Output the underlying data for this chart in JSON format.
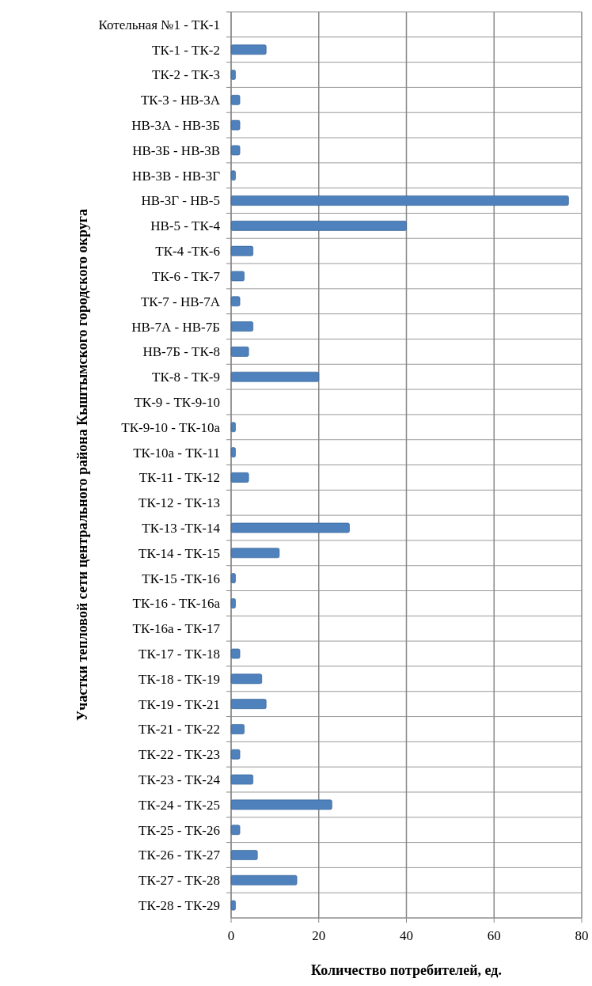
{
  "chart_data": {
    "type": "bar",
    "orientation": "horizontal",
    "xlabel": "Количество потребителей, ед.",
    "ylabel": "Участки тепловой сети центрального района Кыштымского городского округа",
    "categories": [
      "Котельная №1 - ТК-1",
      "ТК-1 - ТК-2",
      "ТК-2 - ТК-3",
      "ТК-3 - НВ-3А",
      "НВ-3А - НВ-3Б",
      "НВ-3Б - НВ-3В",
      "НВ-3В - НВ-3Г",
      "НВ-3Г - НВ-5",
      "НВ-5 - ТК-4",
      "ТК-4 -ТК-6",
      "ТК-6 - ТК-7",
      "ТК-7 - НВ-7А",
      "НВ-7А - НВ-7Б",
      "НВ-7Б - ТК-8",
      "ТК-8 - ТК-9",
      "ТК-9 - ТК-9-10",
      "ТК-9-10 - ТК-10а",
      "ТК-10а - ТК-11",
      "ТК-11 - ТК-12",
      "ТК-12 - ТК-13",
      "ТК-13 -ТК-14",
      "ТК-14 - ТК-15",
      "ТК-15 -ТК-16",
      "ТК-16 - ТК-16а",
      "ТК-16а - ТК-17",
      "ТК-17 - ТК-18",
      "ТК-18 - ТК-19",
      "ТК-19 - ТК-21",
      "ТК-21 - ТК-22",
      "ТК-22 - ТК-23",
      "ТК-23 - ТК-24",
      "ТК-24 - ТК-25",
      "ТК-25 - ТК-26",
      "ТК-26 - ТК-27",
      "ТК-27 - ТК-28",
      "ТК-28 - ТК-29"
    ],
    "values": [
      0,
      8,
      1,
      2,
      2,
      2,
      1,
      77,
      40,
      5,
      3,
      2,
      5,
      4,
      20,
      0,
      1,
      1,
      4,
      0,
      27,
      11,
      1,
      1,
      0,
      2,
      7,
      8,
      3,
      2,
      5,
      23,
      2,
      6,
      15,
      1
    ],
    "color": "#4f81bd",
    "xlim": [
      0,
      80
    ],
    "xticks": [
      0,
      20,
      40,
      60,
      80
    ],
    "grid": true
  }
}
